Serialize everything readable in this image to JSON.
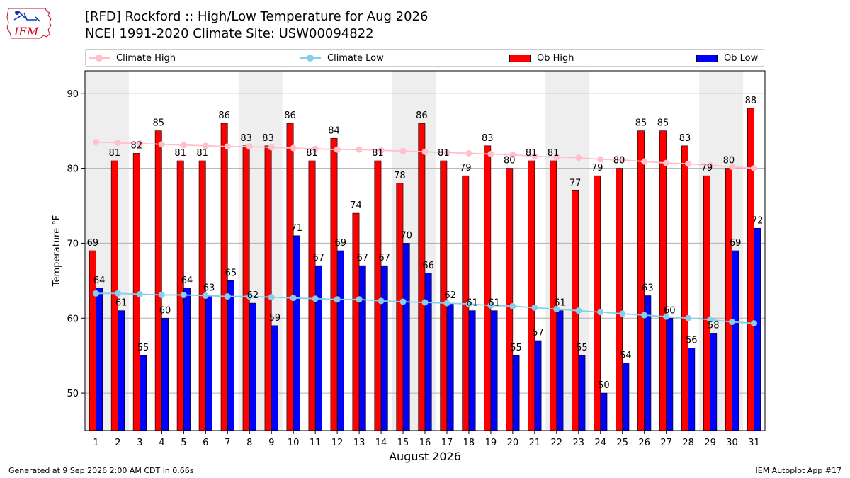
{
  "header": {
    "title_line_1": "[RFD] Rockford :: High/Low Temperature for Aug 2026",
    "title_line_2": "NCEI 1991-2020 Climate Site: USW00094822",
    "logo_text": "IEM"
  },
  "footer": {
    "generated": "Generated at 9 Sep 2026 2:00 AM CDT in 0.66s",
    "app": "IEM Autoplot App #17"
  },
  "colors": {
    "ob_high": "#ff0000",
    "ob_low": "#0000ff",
    "climate_high": "#ffc0cb",
    "climate_low": "#87ceeb",
    "weekend_band": "#eeeeee",
    "grid": "#b0b0b0"
  },
  "chart_data": {
    "type": "bar",
    "xlabel": "August 2026",
    "ylabel": "Temperature °F",
    "ylim": [
      45,
      93
    ],
    "yticks": [
      50,
      60,
      70,
      80,
      90
    ],
    "grid": true,
    "legend_position": "top",
    "categories": [
      "1",
      "2",
      "3",
      "4",
      "5",
      "6",
      "7",
      "8",
      "9",
      "10",
      "11",
      "12",
      "13",
      "14",
      "15",
      "16",
      "17",
      "18",
      "19",
      "20",
      "21",
      "22",
      "23",
      "24",
      "25",
      "26",
      "27",
      "28",
      "29",
      "30",
      "31"
    ],
    "shaded_days": [
      1,
      8,
      15,
      22,
      29
    ],
    "series": [
      {
        "name": "Ob High",
        "kind": "bar",
        "values": [
          69,
          81,
          82,
          85,
          81,
          81,
          86,
          83,
          83,
          86,
          81,
          84,
          74,
          81,
          78,
          86,
          81,
          79,
          83,
          80,
          81,
          81,
          77,
          79,
          80,
          85,
          85,
          83,
          79,
          80,
          88
        ]
      },
      {
        "name": "Ob Low",
        "kind": "bar",
        "values": [
          64,
          61,
          55,
          60,
          64,
          63,
          65,
          62,
          59,
          71,
          67,
          69,
          67,
          67,
          70,
          66,
          62,
          61,
          61,
          55,
          57,
          61,
          55,
          50,
          54,
          63,
          60,
          56,
          58,
          69,
          72
        ]
      },
      {
        "name": "Climate High",
        "kind": "line",
        "values": [
          83.5,
          83.4,
          83.3,
          83.2,
          83.1,
          83.0,
          82.9,
          82.9,
          82.8,
          82.7,
          82.6,
          82.5,
          82.5,
          82.4,
          82.3,
          82.2,
          82.1,
          82.0,
          81.9,
          81.8,
          81.6,
          81.5,
          81.4,
          81.2,
          81.1,
          80.9,
          80.7,
          80.6,
          80.4,
          80.2,
          80.0
        ]
      },
      {
        "name": "Climate Low",
        "kind": "line",
        "values": [
          63.3,
          63.3,
          63.2,
          63.1,
          63.1,
          63.0,
          62.9,
          62.9,
          62.8,
          62.7,
          62.6,
          62.5,
          62.5,
          62.3,
          62.2,
          62.1,
          62.0,
          61.9,
          61.7,
          61.6,
          61.4,
          61.2,
          61.0,
          60.8,
          60.6,
          60.4,
          60.2,
          60.0,
          59.8,
          59.5,
          59.3
        ]
      }
    ]
  }
}
